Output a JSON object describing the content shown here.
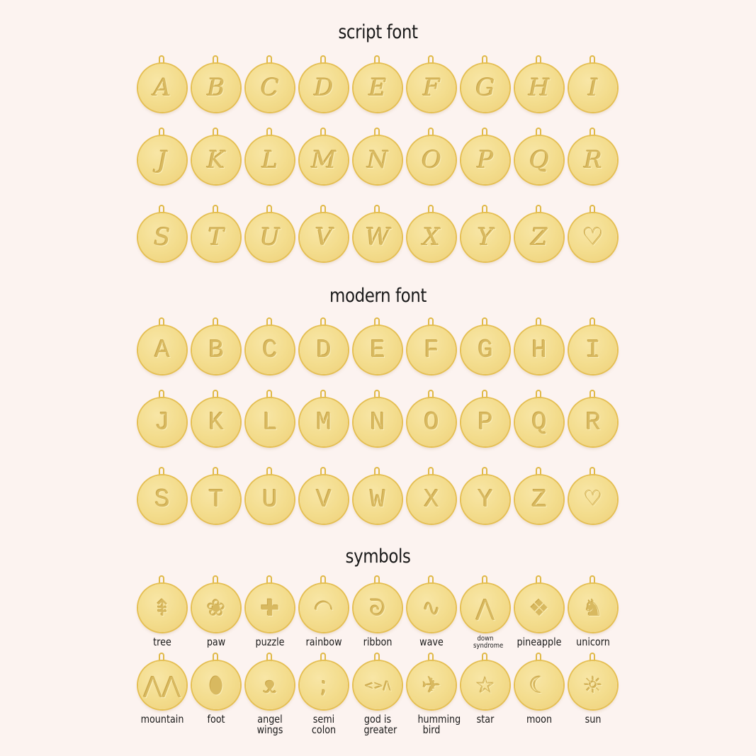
{
  "colors": {
    "background": "#fcf3f0",
    "gold_face": "#f3dc8c",
    "gold_rim": "#e5bf52",
    "engraving": "#d8b960"
  },
  "sections": [
    {
      "title": "script font",
      "style": "script",
      "rows": [
        [
          "A",
          "B",
          "C",
          "D",
          "E",
          "F",
          "G",
          "H",
          "I"
        ],
        [
          "J",
          "K",
          "L",
          "M",
          "N",
          "O",
          "P",
          "Q",
          "R"
        ],
        [
          "S",
          "T",
          "U",
          "V",
          "W",
          "X",
          "Y",
          "Z",
          "♡"
        ]
      ]
    },
    {
      "title": "modern font",
      "style": "modern",
      "rows": [
        [
          "A",
          "B",
          "C",
          "D",
          "E",
          "F",
          "G",
          "H",
          "I"
        ],
        [
          "J",
          "K",
          "L",
          "M",
          "N",
          "O",
          "P",
          "Q",
          "R"
        ],
        [
          "S",
          "T",
          "U",
          "V",
          "W",
          "X",
          "Y",
          "Z",
          "♡"
        ]
      ]
    },
    {
      "title": "symbols",
      "style": "sym",
      "rows": [
        [
          {
            "label": "tree",
            "icon": "tree-icon",
            "glyph": "⇞"
          },
          {
            "label": "paw",
            "icon": "paw-icon",
            "glyph": "❀"
          },
          {
            "label": "puzzle",
            "icon": "puzzle-icon",
            "glyph": "✚"
          },
          {
            "label": "rainbow",
            "icon": "rainbow-icon",
            "glyph": "◠"
          },
          {
            "label": "ribbon",
            "icon": "ribbon-icon",
            "glyph": "ᘐ"
          },
          {
            "label": "wave",
            "icon": "wave-icon",
            "glyph": "∿"
          },
          {
            "label": "down syndrome",
            "icon": "chevrons-up-icon",
            "glyph": "⋀",
            "small": true
          },
          {
            "label": "pineapple",
            "icon": "pineapple-icon",
            "glyph": "❖"
          },
          {
            "label": "unicorn",
            "icon": "unicorn-icon",
            "glyph": "♞"
          }
        ],
        [
          {
            "label": "mountain",
            "icon": "mountain-icon",
            "glyph": "⋀⋀"
          },
          {
            "label": "foot",
            "icon": "foot-icon",
            "glyph": "⬮"
          },
          {
            "label": "angel wings",
            "icon": "angel-wings-icon",
            "glyph": "ᴥ"
          },
          {
            "label": "semi colon",
            "icon": "semicolon-icon",
            "glyph": ";"
          },
          {
            "label": "god is greater",
            "icon": "god-is-greater-icon",
            "glyph": "<>/\\"
          },
          {
            "label": "humming bird",
            "icon": "hummingbird-icon",
            "glyph": "✈"
          },
          {
            "label": "star",
            "icon": "star-icon",
            "glyph": "☆"
          },
          {
            "label": "moon",
            "icon": "moon-icon",
            "glyph": "☾"
          },
          {
            "label": "sun",
            "icon": "sun-icon",
            "glyph": "☼"
          }
        ]
      ]
    }
  ]
}
